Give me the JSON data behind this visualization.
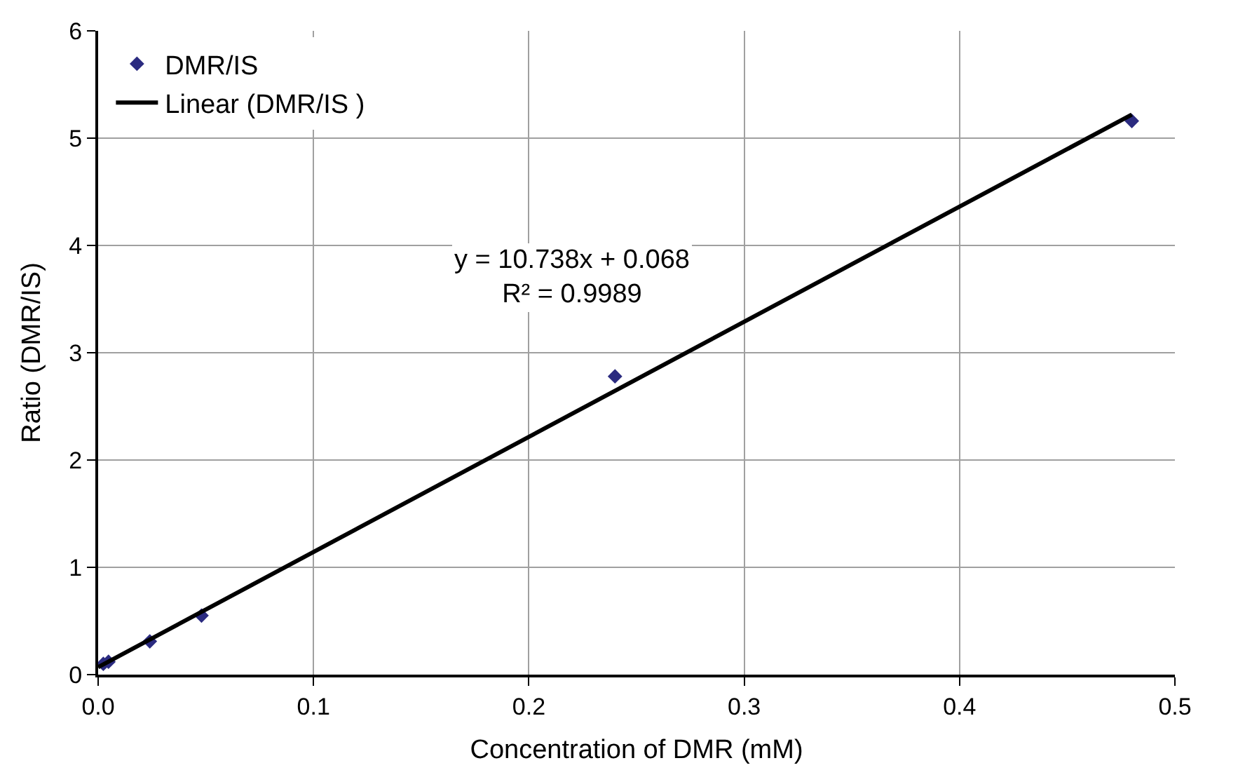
{
  "chart_data": {
    "type": "scatter",
    "xlabel": "Concentration of DMR (mM)",
    "ylabel": "Ratio (DMR/IS)",
    "xlim": [
      0,
      0.5
    ],
    "xticks": [
      {
        "value": 0,
        "label": "0.0"
      },
      0.1,
      0.2,
      0.3,
      0.4,
      0.5
    ],
    "ylim": [
      0,
      6
    ],
    "yticks": [
      0,
      1,
      2,
      3,
      4,
      5,
      6
    ],
    "grid": true,
    "legend": "top left",
    "marker": "diamond",
    "series": [
      {
        "name": "DMR/IS",
        "color": "#2b2b80",
        "x": [
          0.0024,
          0.0048,
          0.024,
          0.048,
          0.24,
          0.48
        ],
        "values": [
          0.1,
          0.12,
          0.31,
          0.55,
          2.78,
          5.16
        ]
      },
      {
        "name": "Linear (DMR/IS )",
        "type": "line",
        "color": "#000000",
        "marker": "none",
        "line_style": "solid",
        "x": [
          0,
          0.48
        ],
        "values": [
          0.07,
          5.22
        ]
      }
    ],
    "annotations": [
      "y = 10.738x + 0.068\nR² = 0.9989"
    ]
  }
}
